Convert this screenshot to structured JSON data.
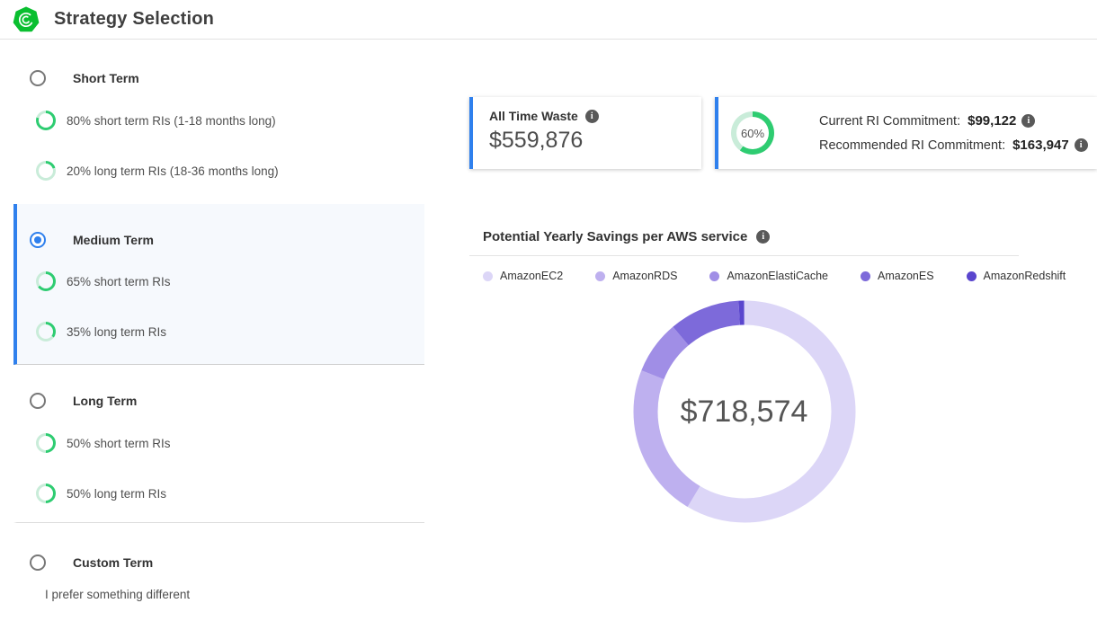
{
  "header": {
    "title": "Strategy Selection",
    "logo_icon": "green-heptagon-spiral-logo"
  },
  "colors": {
    "accent_blue": "#2f80ed",
    "logo_green": "#0abf30",
    "ring_green_dark": "#2ecc71",
    "ring_green_light": "#c9ecd9",
    "selected_row_bg": "#f6f9fd"
  },
  "strategies": {
    "groups": [
      {
        "label": "Short Term",
        "selected": false,
        "items": [
          {
            "percent": 80,
            "label": "80% short term RIs (1-18 months long)"
          },
          {
            "percent": 20,
            "label": "20% long term RIs (18-36 months long)"
          }
        ]
      },
      {
        "label": "Medium Term",
        "selected": true,
        "items": [
          {
            "percent": 65,
            "label": "65% short term RIs"
          },
          {
            "percent": 35,
            "label": "35% long term RIs"
          }
        ]
      },
      {
        "label": "Long Term",
        "selected": false,
        "items": [
          {
            "percent": 50,
            "label": "50% short term RIs"
          },
          {
            "percent": 50,
            "label": "50% long term RIs"
          }
        ]
      },
      {
        "label": "Custom Term",
        "selected": false,
        "description": "I prefer something different",
        "items": []
      }
    ]
  },
  "cards": {
    "waste": {
      "title": "All Time Waste",
      "value": "$559,876"
    },
    "commitment": {
      "ring_percent": 60,
      "ring_label": "60%",
      "current_label": "Current RI Commitment:",
      "current_value": "$99,122",
      "recommended_label": "Recommended RI Commitment:",
      "recommended_value": "$163,947"
    }
  },
  "chart_data": {
    "type": "pie",
    "donut": true,
    "title": "Potential Yearly Savings per AWS service",
    "center_label": "$718,574",
    "legend_position": "top",
    "series": [
      {
        "name": "AmazonEC2",
        "percent": 58.6,
        "color": "#dcd6f7"
      },
      {
        "name": "AmazonRDS",
        "percent": 22.5,
        "color": "#beb0ef"
      },
      {
        "name": "AmazonElastiCache",
        "percent": 7.8,
        "color": "#a08ee6"
      },
      {
        "name": "AmazonES",
        "percent": 10.3,
        "color": "#7d6ada"
      },
      {
        "name": "AmazonRedshift",
        "percent": 0.8,
        "color": "#5a46ce"
      }
    ]
  }
}
